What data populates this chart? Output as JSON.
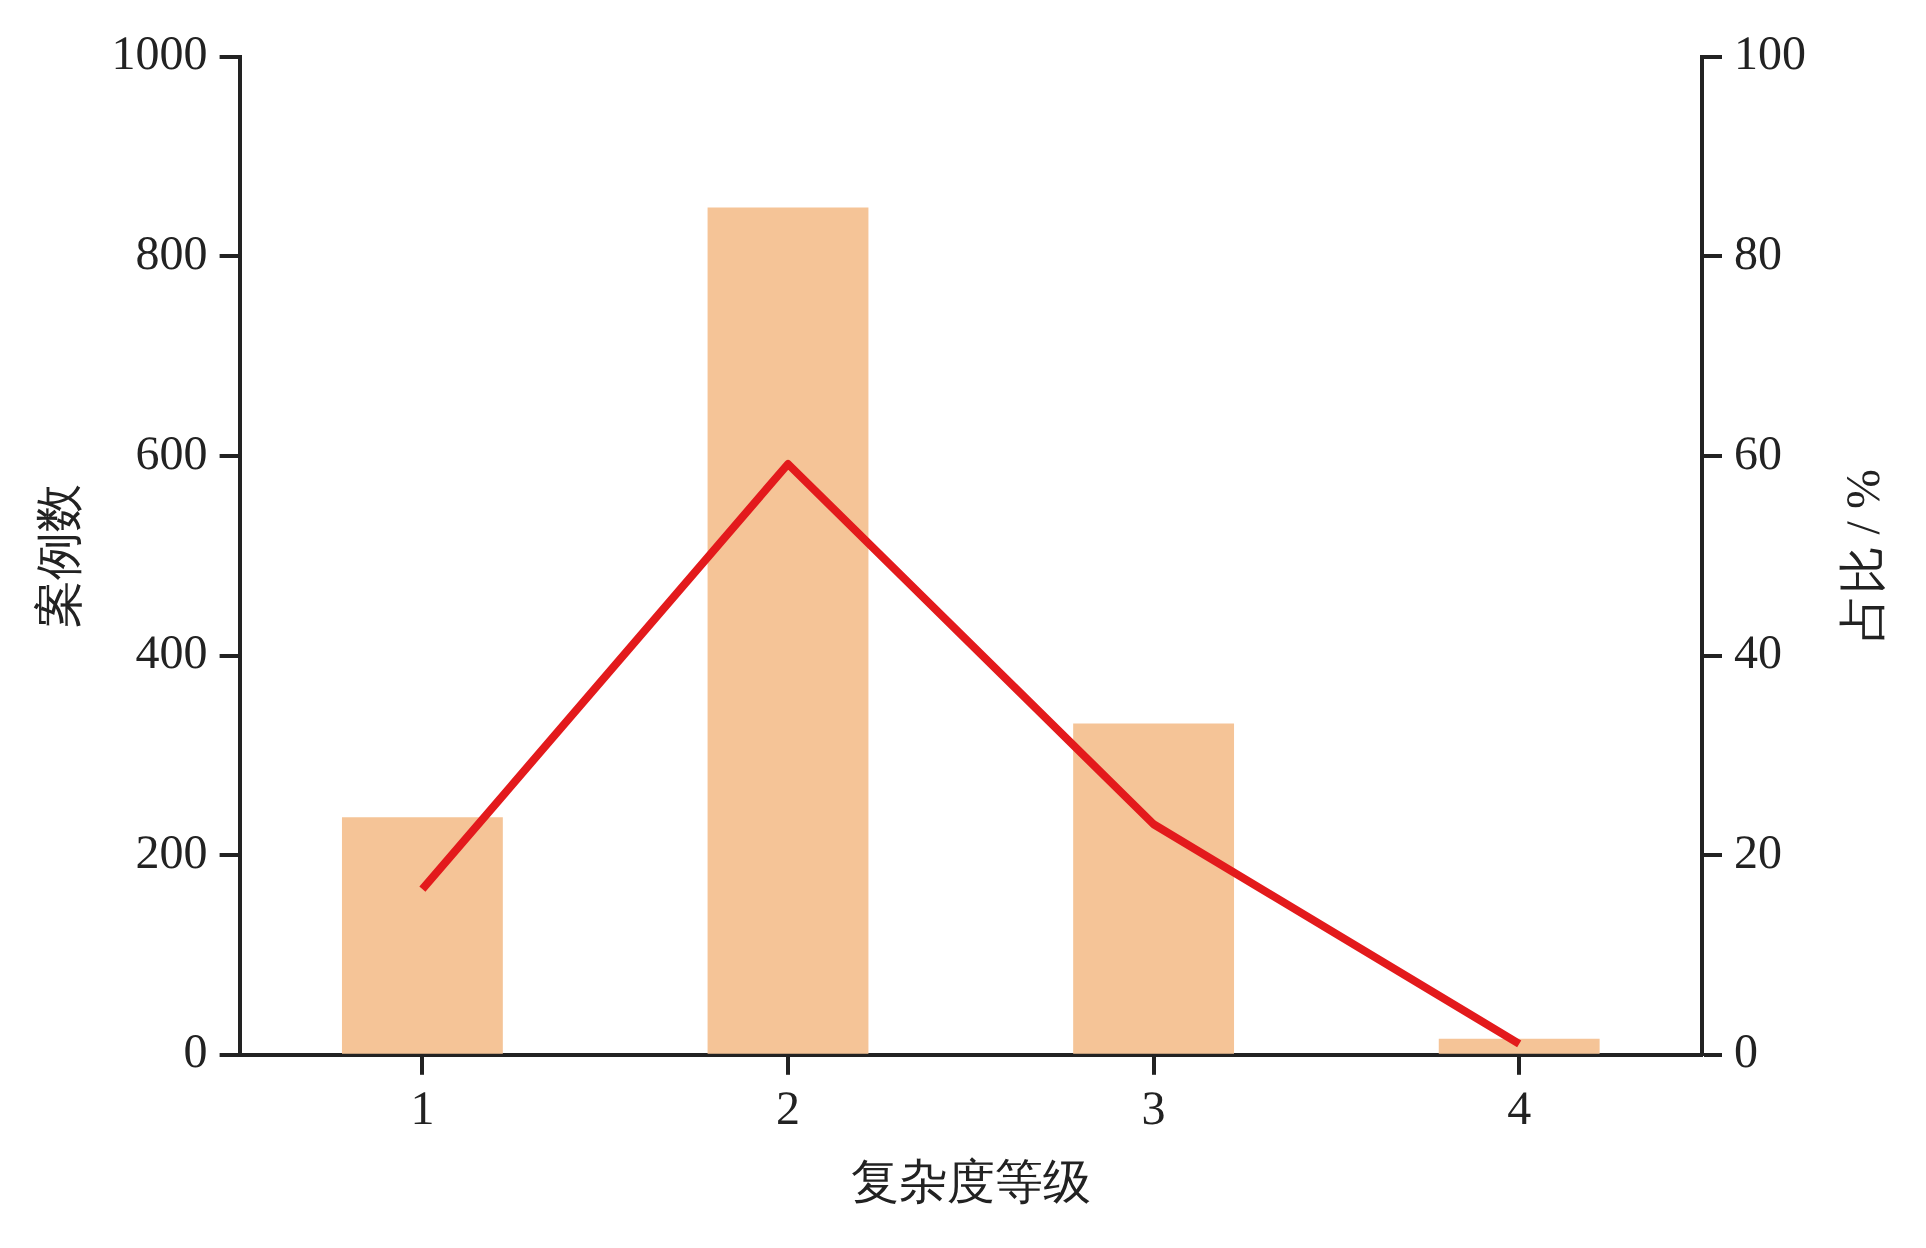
{
  "chart_data": {
    "type": "bar",
    "xlabel": "复杂度等级",
    "ylabel": "案例数",
    "y2label": "占比 / %",
    "categories": [
      "1",
      "2",
      "3",
      "4"
    ],
    "series": [
      {
        "color": "#f5c497",
        "values": [
          238,
          849,
          332,
          16
        ]
      },
      {
        "type": "line",
        "axis": "y2",
        "color": "#e31a1c",
        "values": [
          16.6,
          59.2,
          23.1,
          1.1
        ]
      }
    ],
    "ylim": [
      0,
      1000
    ],
    "yticks": [
      0,
      200,
      400,
      600,
      800,
      1000
    ],
    "y2lim": [
      0,
      100
    ],
    "y2ticks": [
      0,
      20,
      40,
      60,
      80,
      100
    ],
    "grid": false,
    "legend": false,
    "marker": "none",
    "line_style": "solid"
  }
}
